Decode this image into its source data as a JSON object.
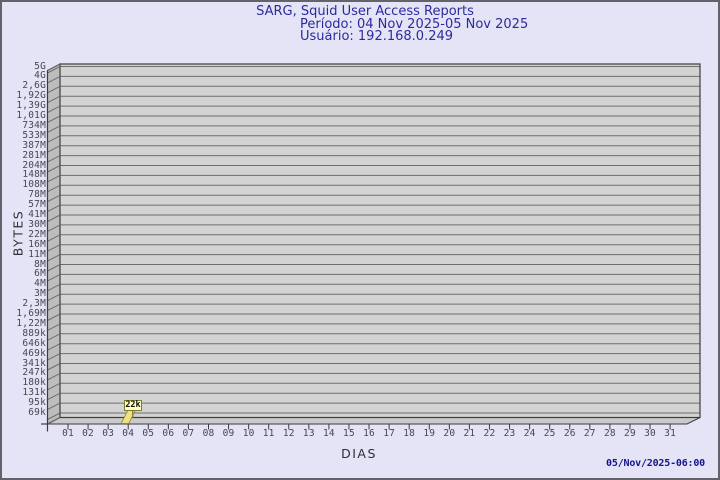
{
  "header": {
    "title": "SARG, Squid User Access Reports",
    "period": "Período: 04 Nov 2025-05 Nov 2025",
    "user": "Usuário: 192.168.0.249"
  },
  "footer": {
    "timestamp": "05/Nov/2025-06:00"
  },
  "chart_data": {
    "type": "bar",
    "title": "SARG, Squid User Access Reports",
    "subtitle": [
      "Período: 04 Nov 2025-05 Nov 2025",
      "Usuário: 192.168.0.249"
    ],
    "xlabel": "DIAS",
    "ylabel": "BYTES",
    "grid": true,
    "legend_position": "none",
    "x_axis": {
      "categories": [
        "01",
        "02",
        "03",
        "04",
        "05",
        "06",
        "07",
        "08",
        "09",
        "10",
        "11",
        "12",
        "13",
        "14",
        "15",
        "16",
        "17",
        "18",
        "19",
        "20",
        "21",
        "22",
        "23",
        "24",
        "25",
        "26",
        "27",
        "28",
        "29",
        "30",
        "31"
      ]
    },
    "y_axis": {
      "scale": "log",
      "tick_labels_top_to_bottom": [
        "5G",
        "4G",
        "2,6G",
        "1,92G",
        "1,39G",
        "1,01G",
        "734M",
        "533M",
        "387M",
        "281M",
        "204M",
        "148M",
        "108M",
        "78M",
        "57M",
        "41M",
        "30M",
        "22M",
        "16M",
        "11M",
        "8M",
        "6M",
        "4M",
        "3M",
        "2,3M",
        "1,69M",
        "1,22M",
        "889k",
        "646k",
        "469k",
        "341k",
        "247k",
        "180k",
        "131k",
        "95k",
        "69k"
      ]
    },
    "series": [
      {
        "name": "192.168.0.249",
        "unit": "bytes",
        "values": [
          null,
          null,
          null,
          22000,
          null,
          null,
          null,
          null,
          null,
          null,
          null,
          null,
          null,
          null,
          null,
          null,
          null,
          null,
          null,
          null,
          null,
          null,
          null,
          null,
          null,
          null,
          null,
          null,
          null,
          null,
          null
        ],
        "points": [
          {
            "day": "04",
            "value_label": "22k",
            "approx_bytes": 22000
          }
        ]
      }
    ]
  },
  "colors": {
    "background": "#e4e4f6",
    "title_text": "#2b2b9e",
    "timestamp_text": "#15158a",
    "plot_fill": "#d3d3d3",
    "wall_fill": "#bdbdbd",
    "floor_fill": "#cacaca",
    "gridline": "#6e6e6e",
    "axis": "#3c3c3c",
    "tick_text": "#47474d",
    "bar_fill": "#f0e187",
    "bar_edge": "#8f8128",
    "bar_label_bg": "#ffffc6",
    "bar_label_border": "#7d7d2e"
  }
}
